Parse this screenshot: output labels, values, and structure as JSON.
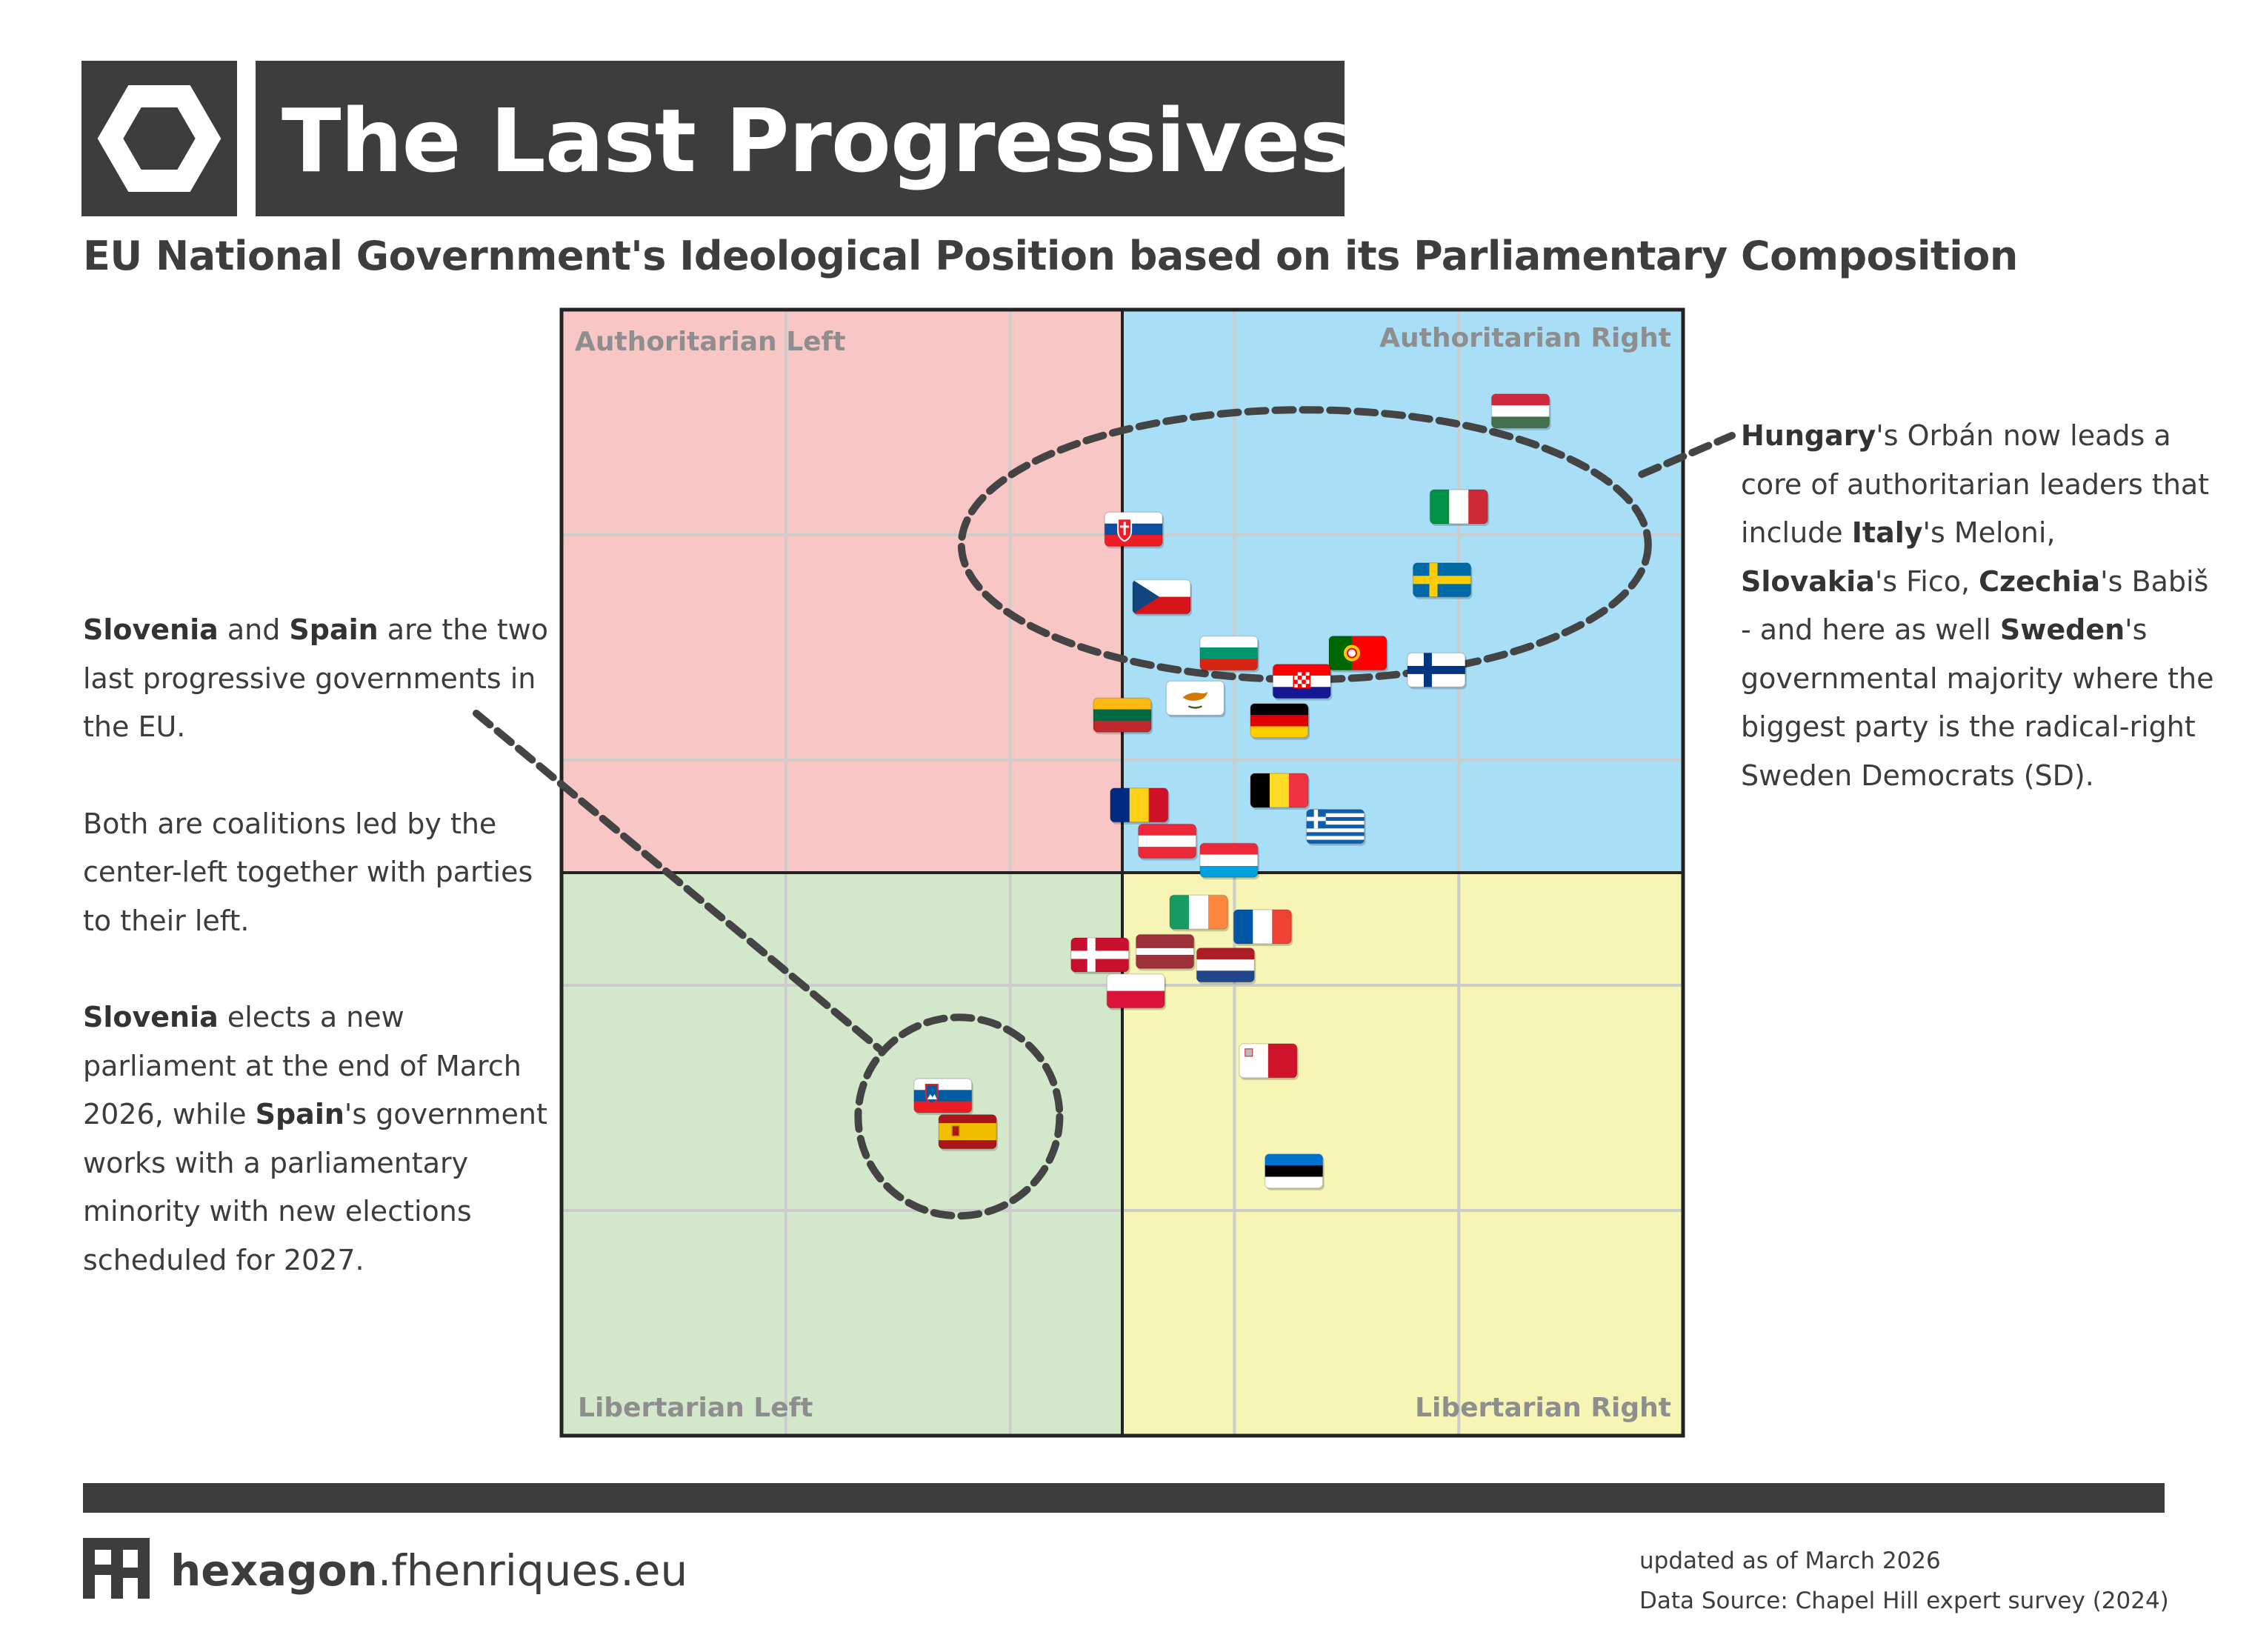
{
  "header": {
    "title": "The Last Progressives",
    "subtitle": "EU National Government's Ideological Position based on its Parliamentary Composition",
    "logo_icon": "hexagon-icon"
  },
  "annotations": {
    "left": [
      [
        {
          "b": "Slovenia"
        },
        {
          "t": " and "
        },
        {
          "b": "Spain"
        },
        {
          "t": " are the two last progressive governments in the EU."
        }
      ],
      [
        {
          "t": "Both are coalitions led by the center-left together with parties to their left."
        }
      ],
      [
        {
          "b": "Slovenia"
        },
        {
          "t": " elects a new parliament at the end of March 2026, while "
        },
        {
          "b": "Spain"
        },
        {
          "t": "'s government works with a parliamentary minority with new elections scheduled for 2027."
        }
      ]
    ],
    "right": [
      [
        {
          "b": "Hungary"
        },
        {
          "t": "'s Orbán now leads a core of authoritarian leaders that include "
        },
        {
          "b": "Italy"
        },
        {
          "t": "'s Meloni, "
        },
        {
          "b": "Slovakia"
        },
        {
          "t": "'s Fico, "
        },
        {
          "b": "Czechia"
        },
        {
          "t": "'s Babiš - and here as well "
        },
        {
          "b": "Sweden"
        },
        {
          "t": "'s governmental majority where the biggest party is the radical-right Sweden Democrats (SD)."
        }
      ]
    ]
  },
  "chart_data": {
    "type": "scatter",
    "quadrants": {
      "top_left": {
        "label": "Authoritarian Left",
        "color": "#f9c6c6"
      },
      "top_right": {
        "label": "Authoritarian Right",
        "color": "#a9def7"
      },
      "bottom_left": {
        "label": "Libertarian Left",
        "color": "#d3e8ca"
      },
      "bottom_right": {
        "label": "Libertarian Right",
        "color": "#f6f5b6"
      }
    },
    "xlim": [
      -5,
      5
    ],
    "ylim": [
      -5,
      5
    ],
    "grid": true,
    "note": "x: economic left(-) to right(+); y: libertarian(-) to authoritarian(+)",
    "points": [
      {
        "country": "Hungary",
        "x": 3.55,
        "y": 4.1,
        "flag": "hungary"
      },
      {
        "country": "Italy",
        "x": 3.0,
        "y": 3.25,
        "flag": "italy"
      },
      {
        "country": "Slovakia",
        "x": 0.1,
        "y": 3.05,
        "flag": "slovakia"
      },
      {
        "country": "Sweden",
        "x": 2.85,
        "y": 2.6,
        "flag": "sweden"
      },
      {
        "country": "Czechia",
        "x": 0.35,
        "y": 2.45,
        "flag": "czechia"
      },
      {
        "country": "Bulgaria",
        "x": 0.95,
        "y": 1.95,
        "flag": "bulgaria"
      },
      {
        "country": "Portugal",
        "x": 2.1,
        "y": 1.95,
        "flag": "portugal"
      },
      {
        "country": "Croatia",
        "x": 1.6,
        "y": 1.7,
        "flag": "croatia"
      },
      {
        "country": "Finland",
        "x": 2.8,
        "y": 1.8,
        "flag": "finland"
      },
      {
        "country": "Cyprus",
        "x": 0.65,
        "y": 1.55,
        "flag": "cyprus"
      },
      {
        "country": "Lithuania",
        "x": 0.0,
        "y": 1.4,
        "flag": "lithuania"
      },
      {
        "country": "Germany",
        "x": 1.4,
        "y": 1.35,
        "flag": "germany"
      },
      {
        "country": "Romania",
        "x": 0.15,
        "y": 0.6,
        "flag": "romania"
      },
      {
        "country": "Belgium",
        "x": 1.4,
        "y": 0.73,
        "flag": "belgium"
      },
      {
        "country": "Greece",
        "x": 1.9,
        "y": 0.41,
        "flag": "greece"
      },
      {
        "country": "Austria",
        "x": 0.4,
        "y": 0.28,
        "flag": "austria"
      },
      {
        "country": "Luxembourg",
        "x": 0.95,
        "y": 0.11,
        "flag": "luxembourg"
      },
      {
        "country": "Ireland",
        "x": 0.68,
        "y": -0.35,
        "flag": "ireland"
      },
      {
        "country": "France",
        "x": 1.25,
        "y": -0.48,
        "flag": "france"
      },
      {
        "country": "Denmark",
        "x": -0.2,
        "y": -0.73,
        "flag": "denmark"
      },
      {
        "country": "Latvia",
        "x": 0.38,
        "y": -0.7,
        "flag": "latvia"
      },
      {
        "country": "Netherlands",
        "x": 0.92,
        "y": -0.82,
        "flag": "netherlands"
      },
      {
        "country": "Poland",
        "x": 0.12,
        "y": -1.05,
        "flag": "poland"
      },
      {
        "country": "Malta",
        "x": 1.3,
        "y": -1.67,
        "flag": "malta"
      },
      {
        "country": "Slovenia",
        "x": -1.6,
        "y": -1.98,
        "flag": "slovenia"
      },
      {
        "country": "Spain",
        "x": -1.38,
        "y": -2.3,
        "flag": "spain"
      },
      {
        "country": "Estonia",
        "x": 1.53,
        "y": -2.65,
        "flag": "estonia"
      }
    ]
  },
  "colors": {
    "dark": "#3d3d3d",
    "grid": "#cccccc",
    "quadrant_label": "#8e8e8e"
  },
  "footer": {
    "brand_bold": "hexagon",
    "brand_rest": ".fhenriques.eu",
    "logo_icon": "fh-logo-icon",
    "updated": "updated as of March 2026",
    "source": "Data Source: Chapel Hill expert survey (2024)"
  }
}
